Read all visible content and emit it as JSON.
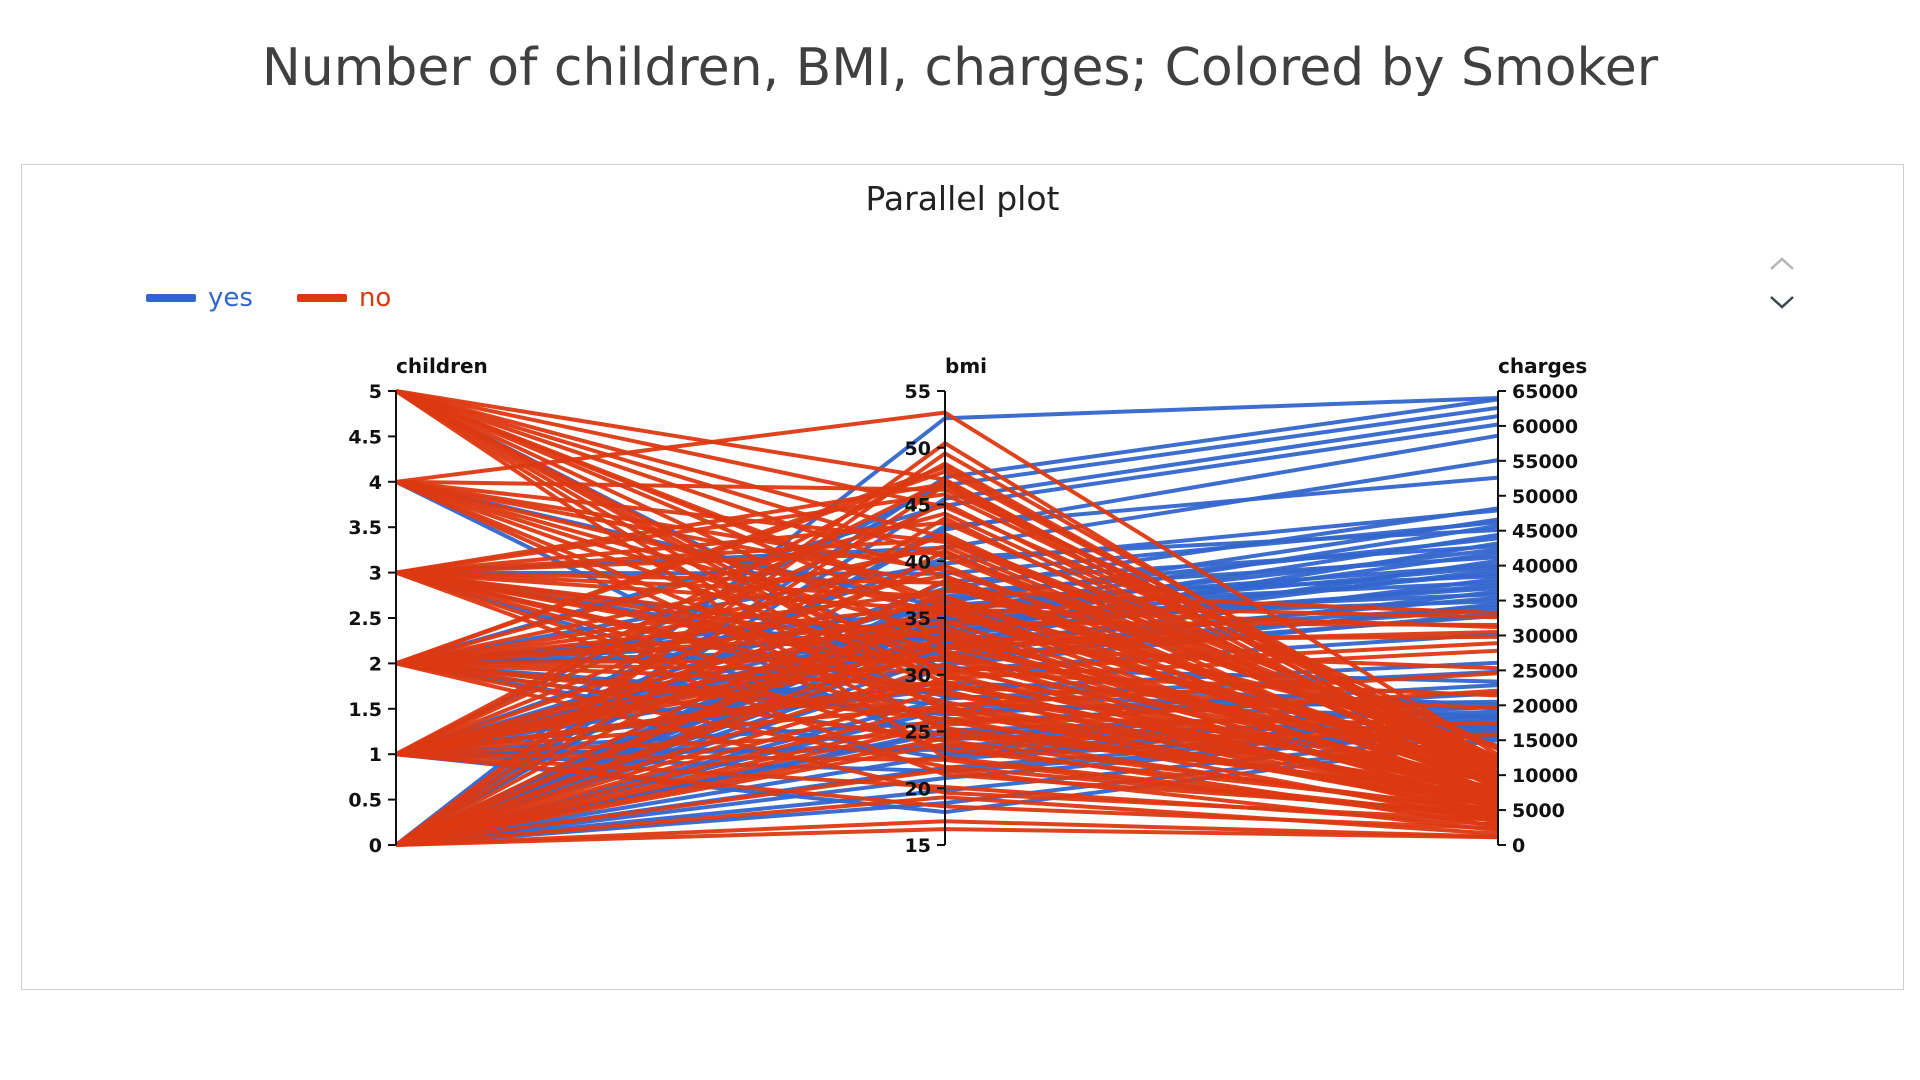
{
  "slide": {
    "title": "Number of children, BMI, charges; Colored by Smoker"
  },
  "legend": {
    "items": [
      {
        "label": "yes",
        "color": "#3366cc"
      },
      {
        "label": "no",
        "color": "#dc3912"
      }
    ]
  },
  "controls": {
    "scroll_up_icon": "chevron-up-icon",
    "scroll_down_icon": "chevron-down-icon"
  },
  "chart_data": {
    "type": "parallel",
    "title": "Parallel plot",
    "dimensions": [
      {
        "name": "children",
        "range": [
          0,
          5
        ],
        "ticks": [
          "0",
          "0.5",
          "1",
          "1.5",
          "2",
          "2.5",
          "3",
          "3.5",
          "4",
          "4.5",
          "5"
        ]
      },
      {
        "name": "bmi",
        "range": [
          15,
          55
        ],
        "ticks": [
          "15",
          "20",
          "25",
          "30",
          "35",
          "40",
          "45",
          "50",
          "55"
        ]
      },
      {
        "name": "charges",
        "range": [
          0,
          65000
        ],
        "ticks": [
          "0",
          "5000",
          "10000",
          "15000",
          "20000",
          "25000",
          "30000",
          "35000",
          "40000",
          "45000",
          "50000",
          "55000",
          "60000",
          "65000"
        ]
      }
    ],
    "series": [
      {
        "name": "yes",
        "color": "#3366cc",
        "rows": [
          [
            0,
            52.6,
            64000
          ],
          [
            0,
            47.4,
            63800
          ],
          [
            1,
            46.7,
            62600
          ],
          [
            0,
            45.5,
            61400
          ],
          [
            2,
            44.9,
            60200
          ],
          [
            0,
            42.8,
            58600
          ],
          [
            3,
            41.2,
            55100
          ],
          [
            0,
            43.1,
            52600
          ],
          [
            1,
            37.6,
            48200
          ],
          [
            2,
            39.8,
            47900
          ],
          [
            0,
            36.4,
            46600
          ],
          [
            3,
            38.9,
            46200
          ],
          [
            0,
            35.5,
            45700
          ],
          [
            1,
            40.3,
            45100
          ],
          [
            2,
            34.8,
            44400
          ],
          [
            0,
            36.9,
            43900
          ],
          [
            1,
            33.7,
            43200
          ],
          [
            0,
            38.2,
            42800
          ],
          [
            2,
            35.6,
            42300
          ],
          [
            1,
            34.1,
            41800
          ],
          [
            0,
            37.3,
            41200
          ],
          [
            3,
            32.9,
            40700
          ],
          [
            0,
            36.1,
            40100
          ],
          [
            1,
            35.2,
            39800
          ],
          [
            2,
            33.4,
            39400
          ],
          [
            0,
            34.6,
            38900
          ],
          [
            1,
            36.7,
            38500
          ],
          [
            0,
            32.4,
            38100
          ],
          [
            4,
            35.9,
            37600
          ],
          [
            0,
            33.8,
            37200
          ],
          [
            1,
            34.4,
            36800
          ],
          [
            2,
            31.8,
            36300
          ],
          [
            0,
            35.1,
            35900
          ],
          [
            1,
            32.7,
            35400
          ],
          [
            0,
            34.9,
            34900
          ],
          [
            3,
            31.2,
            34500
          ],
          [
            0,
            33.1,
            34100
          ],
          [
            2,
            32.3,
            33700
          ],
          [
            1,
            30.9,
            33200
          ],
          [
            0,
            31.6,
            32800
          ],
          [
            5,
            30.4,
            30200
          ],
          [
            1,
            28.7,
            26100
          ],
          [
            0,
            27.9,
            24800
          ],
          [
            2,
            26.5,
            22900
          ],
          [
            1,
            25.8,
            21700
          ],
          [
            0,
            26.9,
            20500
          ],
          [
            3,
            24.6,
            19800
          ],
          [
            0,
            25.1,
            19100
          ],
          [
            1,
            23.7,
            18600
          ],
          [
            2,
            24.3,
            18200
          ],
          [
            0,
            22.9,
            17900
          ],
          [
            1,
            23.4,
            17500
          ],
          [
            0,
            21.8,
            17100
          ],
          [
            2,
            22.6,
            16800
          ],
          [
            0,
            20.9,
            16500
          ],
          [
            1,
            21.5,
            16200
          ],
          [
            0,
            19.8,
            15900
          ],
          [
            4,
            23.1,
            15600
          ],
          [
            0,
            18.7,
            15300
          ],
          [
            1,
            17.9,
            15000
          ],
          [
            0,
            24.9,
            16900
          ],
          [
            2,
            27.4,
            18400
          ],
          [
            1,
            29.3,
            20100
          ],
          [
            0,
            30.6,
            23400
          ],
          [
            3,
            28.1,
            19600
          ]
        ]
      },
      {
        "name": "no",
        "color": "#dc3912",
        "rows": [
          [
            5,
            47.2,
            9800
          ],
          [
            5,
            42.1,
            12600
          ],
          [
            5,
            38.6,
            8400
          ],
          [
            5,
            36.3,
            14200
          ],
          [
            5,
            34.7,
            6900
          ],
          [
            5,
            32.5,
            11300
          ],
          [
            5,
            30.1,
            5600
          ],
          [
            5,
            28.4,
            9100
          ],
          [
            5,
            26.8,
            4800
          ],
          [
            5,
            24.9,
            7300
          ],
          [
            5,
            40.4,
            10500
          ],
          [
            5,
            44.8,
            13700
          ],
          [
            5,
            22.7,
            3900
          ],
          [
            5,
            35.9,
            8800
          ],
          [
            5,
            29.2,
            6300
          ],
          [
            4,
            46.3,
            13900
          ],
          [
            4,
            41.7,
            11800
          ],
          [
            4,
            37.9,
            10200
          ],
          [
            4,
            33.6,
            9400
          ],
          [
            4,
            29.8,
            8100
          ],
          [
            4,
            27.1,
            7600
          ],
          [
            4,
            25.3,
            6700
          ],
          [
            4,
            39.2,
            12300
          ],
          [
            4,
            35.4,
            10900
          ],
          [
            4,
            31.9,
            8900
          ],
          [
            3,
            45.9,
            12100
          ],
          [
            3,
            43.4,
            11200
          ],
          [
            3,
            40.8,
            10400
          ],
          [
            3,
            38.1,
            9600
          ],
          [
            3,
            35.7,
            8700
          ],
          [
            3,
            33.2,
            7900
          ],
          [
            3,
            30.7,
            7100
          ],
          [
            3,
            28.3,
            6400
          ],
          [
            3,
            25.9,
            5800
          ],
          [
            3,
            23.4,
            5100
          ],
          [
            3,
            21.2,
            4600
          ],
          [
            3,
            36.9,
            9200
          ],
          [
            3,
            32.1,
            7400
          ],
          [
            3,
            27.6,
            6000
          ],
          [
            3,
            41.9,
            10800
          ],
          [
            2,
            47.9,
            11600
          ],
          [
            2,
            44.2,
            10900
          ],
          [
            2,
            41.3,
            10100
          ],
          [
            2,
            38.7,
            9300
          ],
          [
            2,
            36.1,
            8500
          ],
          [
            2,
            33.8,
            7700
          ],
          [
            2,
            31.4,
            6900
          ],
          [
            2,
            29.1,
            6200
          ],
          [
            2,
            26.7,
            5500
          ],
          [
            2,
            24.2,
            4800
          ],
          [
            2,
            21.9,
            4200
          ],
          [
            2,
            19.6,
            3600
          ],
          [
            2,
            34.6,
            31500
          ],
          [
            2,
            37.4,
            33200
          ],
          [
            2,
            30.3,
            28900
          ],
          [
            1,
            48.6,
            10300
          ],
          [
            1,
            45.1,
            9700
          ],
          [
            1,
            42.4,
            8900
          ],
          [
            1,
            39.6,
            8200
          ],
          [
            1,
            36.8,
            7400
          ],
          [
            1,
            34.2,
            6700
          ],
          [
            1,
            31.7,
            6000
          ],
          [
            1,
            29.4,
            5300
          ],
          [
            1,
            27.2,
            4700
          ],
          [
            1,
            24.8,
            4100
          ],
          [
            1,
            22.5,
            3500
          ],
          [
            1,
            20.1,
            2900
          ],
          [
            1,
            18.4,
            2400
          ],
          [
            1,
            33.1,
            29800
          ],
          [
            1,
            35.8,
            31200
          ],
          [
            0,
            50.4,
            9500
          ],
          [
            0,
            46.7,
            8800
          ],
          [
            0,
            43.8,
            8100
          ],
          [
            0,
            40.9,
            7300
          ],
          [
            0,
            38.3,
            6600
          ],
          [
            0,
            35.6,
            5900
          ],
          [
            0,
            33.3,
            5200
          ],
          [
            0,
            30.9,
            4500
          ],
          [
            0,
            28.6,
            3900
          ],
          [
            0,
            26.2,
            3300
          ],
          [
            0,
            23.9,
            2700
          ],
          [
            0,
            21.6,
            2100
          ],
          [
            0,
            19.2,
            1600
          ],
          [
            0,
            17.1,
            1200
          ],
          [
            0,
            16.4,
            1100
          ],
          [
            0,
            32.6,
            30500
          ],
          [
            0,
            36.2,
            32600
          ],
          [
            0,
            29.7,
            27800
          ],
          [
            0,
            27.3,
            24600
          ],
          [
            0,
            25.6,
            22100
          ],
          [
            1,
            28.9,
            19600
          ],
          [
            2,
            26.1,
            17400
          ],
          [
            0,
            24.4,
            15800
          ],
          [
            3,
            30.2,
            21400
          ],
          [
            1,
            32.4,
            25300
          ],
          [
            4,
            53.1,
            12900
          ],
          [
            0,
            49.5,
            11100
          ],
          [
            2,
            48.3,
            10600
          ],
          [
            1,
            47.1,
            9900
          ],
          [
            3,
            46.8,
            12400
          ]
        ]
      }
    ]
  }
}
